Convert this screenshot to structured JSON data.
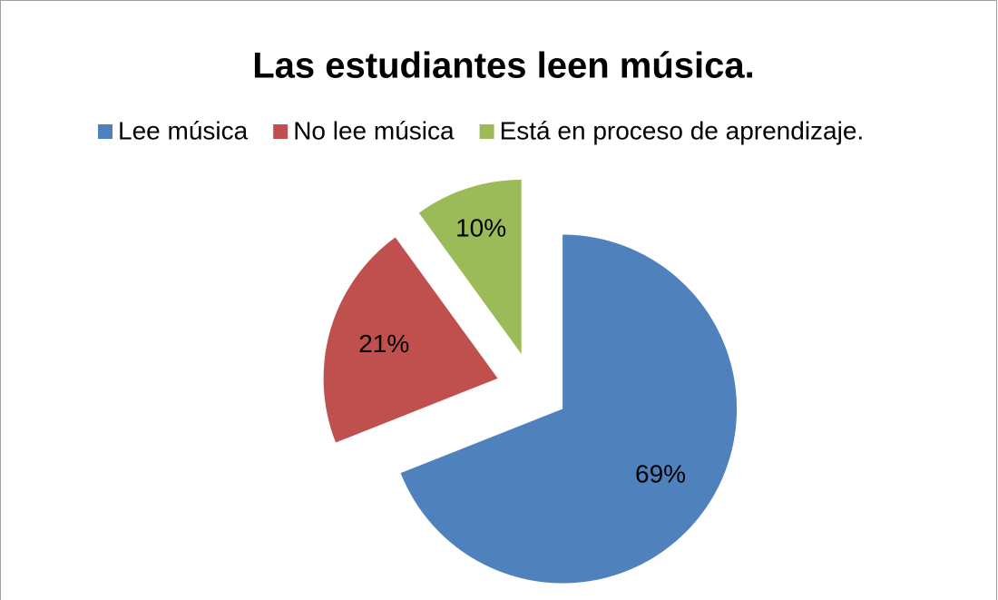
{
  "chart_data": {
    "type": "pie",
    "title": "Las estudiantes leen música.",
    "categories": [
      "Lee música",
      "No lee música",
      "Está en proceso de aprendizaje."
    ],
    "values": [
      69,
      21,
      10
    ],
    "value_labels": [
      "69%",
      "21%",
      "10%"
    ],
    "colors": [
      "#4f81bd",
      "#c0504d",
      "#9bbb59"
    ],
    "legend": "top"
  }
}
